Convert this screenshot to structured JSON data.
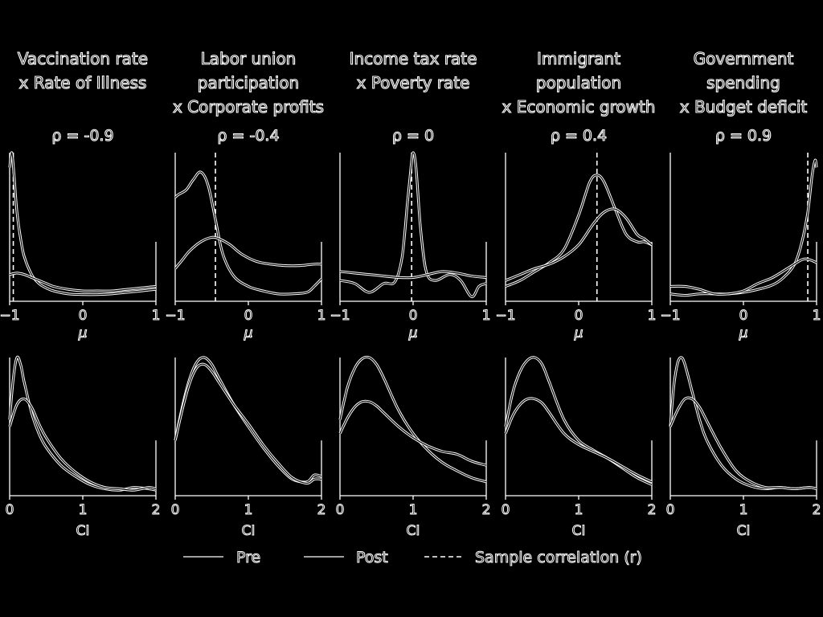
{
  "legend": {
    "pre": "Pre",
    "post": "Post",
    "sample": "Sample correlation (r)"
  },
  "chart_data": [
    {
      "type": "line",
      "title_lines": [
        "Vaccination rate",
        "x Rate of Illness"
      ],
      "rho_label": "ρ = -0.9",
      "xlabel": "μ",
      "xlim": [
        -1,
        1
      ],
      "xticks": [
        "−1",
        "0",
        "1"
      ],
      "sample_r": -0.95,
      "series": [
        {
          "name": "Pre",
          "x": [
            -1,
            -0.97,
            -0.94,
            -0.9,
            -0.85,
            -0.8,
            -0.7,
            -0.6,
            -0.5,
            -0.4,
            -0.2,
            0,
            0.2,
            0.4,
            0.6,
            0.8,
            1
          ],
          "y": [
            0.9,
            1.0,
            0.85,
            0.6,
            0.42,
            0.3,
            0.18,
            0.12,
            0.09,
            0.07,
            0.05,
            0.045,
            0.045,
            0.05,
            0.06,
            0.07,
            0.08
          ]
        },
        {
          "name": "Post",
          "x": [
            -1,
            -0.9,
            -0.8,
            -0.7,
            -0.6,
            -0.5,
            -0.4,
            -0.2,
            0,
            0.2,
            0.4,
            0.6,
            0.8,
            1
          ],
          "y": [
            0.18,
            0.19,
            0.18,
            0.16,
            0.14,
            0.12,
            0.1,
            0.08,
            0.07,
            0.07,
            0.07,
            0.08,
            0.09,
            0.1
          ]
        }
      ]
    },
    {
      "type": "line",
      "title_lines": [
        "Labor union",
        "participation",
        "x Corporate profits"
      ],
      "rho_label": "ρ = -0.4",
      "xlabel": "μ",
      "xlim": [
        -1,
        1
      ],
      "xticks": [
        "−1",
        "0",
        "1"
      ],
      "sample_r": -0.45,
      "series": [
        {
          "name": "Pre",
          "x": [
            -1,
            -0.95,
            -0.85,
            -0.75,
            -0.65,
            -0.55,
            -0.45,
            -0.35,
            -0.2,
            0,
            0.2,
            0.4,
            0.6,
            0.8,
            0.9,
            1
          ],
          "y": [
            0.7,
            0.72,
            0.75,
            0.82,
            0.87,
            0.78,
            0.55,
            0.32,
            0.17,
            0.1,
            0.07,
            0.05,
            0.05,
            0.06,
            0.1,
            0.15
          ]
        },
        {
          "name": "Post",
          "x": [
            -1,
            -0.9,
            -0.8,
            -0.65,
            -0.5,
            -0.4,
            -0.25,
            -0.1,
            0.1,
            0.3,
            0.5,
            0.7,
            0.9,
            1
          ],
          "y": [
            0.22,
            0.28,
            0.34,
            0.4,
            0.43,
            0.42,
            0.38,
            0.32,
            0.27,
            0.25,
            0.24,
            0.24,
            0.25,
            0.25
          ]
        }
      ]
    },
    {
      "type": "line",
      "title_lines": [
        "Income tax rate",
        "x Poverty rate"
      ],
      "rho_label": "ρ = 0",
      "xlabel": "μ",
      "xlim": [
        -1,
        1
      ],
      "xticks": [
        "−1",
        "0",
        "1"
      ],
      "sample_r": -0.02,
      "series": [
        {
          "name": "Pre",
          "x": [
            -1,
            -0.8,
            -0.6,
            -0.4,
            -0.25,
            -0.15,
            -0.08,
            -0.03,
            0,
            0.04,
            0.1,
            0.18,
            0.3,
            0.5,
            0.65,
            0.8,
            0.9,
            1
          ],
          "y": [
            0.14,
            0.12,
            0.06,
            0.12,
            0.13,
            0.3,
            0.65,
            0.9,
            1.0,
            0.9,
            0.5,
            0.2,
            0.14,
            0.18,
            0.14,
            0.03,
            0.1,
            0.12
          ]
        },
        {
          "name": "Post",
          "x": [
            -1,
            -0.8,
            -0.6,
            -0.4,
            -0.2,
            0,
            0.2,
            0.4,
            0.6,
            0.8,
            1
          ],
          "y": [
            0.2,
            0.19,
            0.18,
            0.17,
            0.16,
            0.16,
            0.18,
            0.2,
            0.19,
            0.17,
            0.16
          ]
        }
      ]
    },
    {
      "type": "line",
      "title_lines": [
        "Immigrant",
        "population",
        "x Economic growth"
      ],
      "rho_label": "ρ = 0.4",
      "xlabel": "μ",
      "xlim": [
        -1,
        1
      ],
      "xticks": [
        "−1",
        "0",
        "1"
      ],
      "sample_r": 0.25,
      "series": [
        {
          "name": "Pre",
          "x": [
            -1,
            -0.8,
            -0.6,
            -0.4,
            -0.2,
            0,
            0.15,
            0.25,
            0.35,
            0.5,
            0.65,
            0.8,
            0.9,
            1
          ],
          "y": [
            0.1,
            0.14,
            0.2,
            0.26,
            0.35,
            0.58,
            0.8,
            0.85,
            0.8,
            0.62,
            0.45,
            0.4,
            0.4,
            0.38
          ]
        },
        {
          "name": "Post",
          "x": [
            -1,
            -0.8,
            -0.6,
            -0.4,
            -0.2,
            0,
            0.2,
            0.35,
            0.5,
            0.65,
            0.8,
            0.9,
            1
          ],
          "y": [
            0.14,
            0.18,
            0.22,
            0.25,
            0.3,
            0.38,
            0.52,
            0.6,
            0.62,
            0.56,
            0.45,
            0.42,
            0.38
          ]
        }
      ]
    },
    {
      "type": "line",
      "title_lines": [
        "Government",
        "spending",
        "x Budget deficit"
      ],
      "rho_label": "ρ = 0.9",
      "xlabel": "μ",
      "xlim": [
        -1,
        1
      ],
      "xticks": [
        "−1",
        "0",
        "1"
      ],
      "sample_r": 0.88,
      "series": [
        {
          "name": "Pre",
          "x": [
            -1,
            -0.8,
            -0.6,
            -0.4,
            -0.2,
            0,
            0.2,
            0.4,
            0.55,
            0.7,
            0.8,
            0.88,
            0.94,
            0.98,
            1
          ],
          "y": [
            0.05,
            0.04,
            0.05,
            0.05,
            0.05,
            0.06,
            0.08,
            0.11,
            0.16,
            0.25,
            0.4,
            0.6,
            0.85,
            0.95,
            0.9
          ]
        },
        {
          "name": "Post",
          "x": [
            -1,
            -0.8,
            -0.6,
            -0.4,
            -0.2,
            0,
            0.2,
            0.4,
            0.6,
            0.8,
            0.9,
            1
          ],
          "y": [
            0.1,
            0.1,
            0.08,
            0.05,
            0.05,
            0.07,
            0.12,
            0.16,
            0.22,
            0.28,
            0.28,
            0.26
          ]
        }
      ]
    },
    {
      "type": "line",
      "xlabel": "CI",
      "xlim": [
        0,
        2
      ],
      "xticks": [
        "0",
        "1",
        "2"
      ],
      "series": [
        {
          "name": "Pre",
          "x": [
            0,
            0.05,
            0.1,
            0.15,
            0.2,
            0.3,
            0.4,
            0.5,
            0.7,
            0.9,
            1.1,
            1.3,
            1.5,
            1.7,
            1.9,
            2
          ],
          "y": [
            0.55,
            0.85,
            1.0,
            0.95,
            0.82,
            0.6,
            0.45,
            0.35,
            0.22,
            0.14,
            0.08,
            0.05,
            0.04,
            0.06,
            0.05,
            0.04
          ]
        },
        {
          "name": "Post",
          "x": [
            0,
            0.1,
            0.2,
            0.3,
            0.4,
            0.5,
            0.7,
            0.9,
            1.1,
            1.3,
            1.5,
            1.7,
            1.9,
            2
          ],
          "y": [
            0.5,
            0.66,
            0.7,
            0.64,
            0.52,
            0.42,
            0.27,
            0.17,
            0.1,
            0.06,
            0.05,
            0.04,
            0.06,
            0.05
          ]
        }
      ]
    },
    {
      "type": "line",
      "xlabel": "CI",
      "xlim": [
        0,
        2
      ],
      "xticks": [
        "0",
        "1",
        "2"
      ],
      "series": [
        {
          "name": "Pre",
          "x": [
            0,
            0.1,
            0.2,
            0.3,
            0.4,
            0.5,
            0.6,
            0.8,
            1.0,
            1.2,
            1.4,
            1.6,
            1.8,
            1.9,
            2
          ],
          "y": [
            0.4,
            0.65,
            0.85,
            0.97,
            1.0,
            0.95,
            0.85,
            0.66,
            0.5,
            0.35,
            0.22,
            0.12,
            0.1,
            0.15,
            0.14
          ]
        },
        {
          "name": "Post",
          "x": [
            0,
            0.1,
            0.2,
            0.3,
            0.4,
            0.5,
            0.6,
            0.8,
            1.0,
            1.2,
            1.4,
            1.6,
            1.8,
            1.9,
            2
          ],
          "y": [
            0.4,
            0.63,
            0.82,
            0.93,
            0.95,
            0.9,
            0.82,
            0.66,
            0.52,
            0.37,
            0.24,
            0.13,
            0.09,
            0.12,
            0.12
          ]
        }
      ]
    },
    {
      "type": "line",
      "xlabel": "CI",
      "xlim": [
        0,
        2
      ],
      "xticks": [
        "0",
        "1",
        "2"
      ],
      "series": [
        {
          "name": "Pre",
          "x": [
            0,
            0.1,
            0.2,
            0.3,
            0.4,
            0.5,
            0.6,
            0.8,
            1.0,
            1.2,
            1.4,
            1.6,
            1.8,
            2
          ],
          "y": [
            0.55,
            0.78,
            0.92,
            0.99,
            1.0,
            0.95,
            0.85,
            0.62,
            0.45,
            0.33,
            0.24,
            0.18,
            0.13,
            0.1
          ]
        },
        {
          "name": "Post",
          "x": [
            0,
            0.1,
            0.2,
            0.3,
            0.4,
            0.5,
            0.6,
            0.8,
            1.0,
            1.2,
            1.4,
            1.6,
            1.8,
            2
          ],
          "y": [
            0.45,
            0.56,
            0.64,
            0.68,
            0.68,
            0.65,
            0.6,
            0.5,
            0.42,
            0.36,
            0.32,
            0.3,
            0.25,
            0.22
          ]
        }
      ]
    },
    {
      "type": "line",
      "xlabel": "CI",
      "xlim": [
        0,
        2
      ],
      "xticks": [
        "0",
        "1",
        "2"
      ],
      "series": [
        {
          "name": "Pre",
          "x": [
            0,
            0.1,
            0.2,
            0.3,
            0.4,
            0.5,
            0.6,
            0.8,
            1.0,
            1.2,
            1.4,
            1.6,
            1.8,
            2
          ],
          "y": [
            0.5,
            0.75,
            0.9,
            0.98,
            1.0,
            0.95,
            0.82,
            0.55,
            0.4,
            0.33,
            0.27,
            0.2,
            0.13,
            0.08
          ]
        },
        {
          "name": "Post",
          "x": [
            0,
            0.1,
            0.2,
            0.3,
            0.4,
            0.5,
            0.6,
            0.8,
            1.0,
            1.2,
            1.4,
            1.6,
            1.8,
            2
          ],
          "y": [
            0.45,
            0.58,
            0.66,
            0.7,
            0.7,
            0.67,
            0.6,
            0.45,
            0.37,
            0.32,
            0.27,
            0.21,
            0.15,
            0.1
          ]
        }
      ]
    },
    {
      "type": "line",
      "xlabel": "CI",
      "xlim": [
        0,
        2
      ],
      "xticks": [
        "0",
        "1",
        "2"
      ],
      "series": [
        {
          "name": "Pre",
          "x": [
            0,
            0.05,
            0.1,
            0.15,
            0.2,
            0.3,
            0.4,
            0.5,
            0.7,
            0.9,
            1.1,
            1.3,
            1.5,
            1.7,
            1.9,
            2
          ],
          "y": [
            0.5,
            0.8,
            0.96,
            1.0,
            0.95,
            0.75,
            0.55,
            0.4,
            0.22,
            0.12,
            0.07,
            0.05,
            0.06,
            0.05,
            0.06,
            0.05
          ]
        },
        {
          "name": "Post",
          "x": [
            0,
            0.1,
            0.2,
            0.3,
            0.4,
            0.5,
            0.7,
            0.9,
            1.1,
            1.3,
            1.5,
            1.7,
            1.9,
            2
          ],
          "y": [
            0.5,
            0.62,
            0.7,
            0.7,
            0.64,
            0.54,
            0.34,
            0.18,
            0.1,
            0.06,
            0.06,
            0.05,
            0.06,
            0.05
          ]
        }
      ]
    }
  ]
}
